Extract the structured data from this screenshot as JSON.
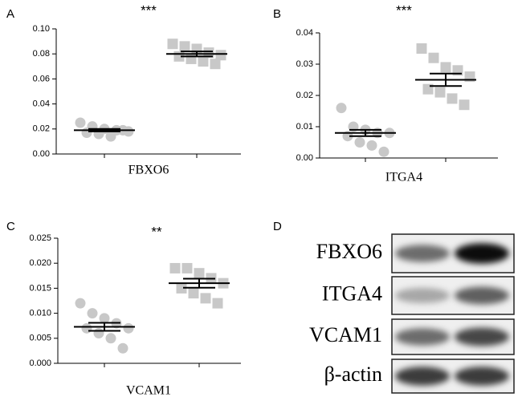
{
  "chart_data": [
    {
      "type": "scatter",
      "label": "A",
      "title": "***",
      "x_label": "FBXO6",
      "ylim": [
        0,
        0.1
      ],
      "yticks": [
        {
          "value": 0,
          "label": "0.00"
        },
        {
          "value": 0.02,
          "label": "0.02"
        },
        {
          "value": 0.04,
          "label": "0.04"
        },
        {
          "value": 0.06,
          "label": "0.06"
        },
        {
          "value": 0.08,
          "label": "0.08"
        },
        {
          "value": 0.1,
          "label": "0.10"
        }
      ],
      "series": [
        {
          "marker": "circle",
          "color": "#c8c8c8",
          "values": [
            0.025,
            0.022,
            0.02,
            0.019,
            0.018,
            0.017,
            0.016,
            0.014,
            0.019
          ],
          "mean": 0.019,
          "sem": 0.001
        },
        {
          "marker": "square",
          "color": "#c8c8c8",
          "values": [
            0.088,
            0.086,
            0.084,
            0.081,
            0.079,
            0.078,
            0.076,
            0.074,
            0.072
          ],
          "mean": 0.08,
          "sem": 0.002
        }
      ]
    },
    {
      "type": "scatter",
      "label": "B",
      "title": "***",
      "x_label": "ITGA4",
      "ylim": [
        0,
        0.04
      ],
      "yticks": [
        {
          "value": 0,
          "label": "0.00"
        },
        {
          "value": 0.01,
          "label": "0.01"
        },
        {
          "value": 0.02,
          "label": "0.02"
        },
        {
          "value": 0.03,
          "label": "0.03"
        },
        {
          "value": 0.04,
          "label": "0.04"
        }
      ],
      "series": [
        {
          "marker": "circle",
          "color": "#c8c8c8",
          "values": [
            0.016,
            0.01,
            0.009,
            0.008,
            0.008,
            0.007,
            0.005,
            0.004,
            0.002
          ],
          "mean": 0.008,
          "sem": 0.001
        },
        {
          "marker": "square",
          "color": "#c8c8c8",
          "values": [
            0.035,
            0.032,
            0.029,
            0.028,
            0.026,
            0.022,
            0.021,
            0.019,
            0.017
          ],
          "mean": 0.025,
          "sem": 0.002
        }
      ]
    },
    {
      "type": "scatter",
      "label": "C",
      "title": "**",
      "x_label": "VCAM1",
      "ylim": [
        0,
        0.025
      ],
      "yticks": [
        {
          "value": 0,
          "label": "0.000"
        },
        {
          "value": 0.005,
          "label": "0.005"
        },
        {
          "value": 0.01,
          "label": "0.010"
        },
        {
          "value": 0.015,
          "label": "0.015"
        },
        {
          "value": 0.02,
          "label": "0.020"
        },
        {
          "value": 0.025,
          "label": "0.025"
        }
      ],
      "series": [
        {
          "marker": "circle",
          "color": "#c8c8c8",
          "values": [
            0.012,
            0.01,
            0.009,
            0.008,
            0.007,
            0.007,
            0.006,
            0.005,
            0.003
          ],
          "mean": 0.0073,
          "sem": 0.0008
        },
        {
          "marker": "square",
          "color": "#c8c8c8",
          "values": [
            0.019,
            0.019,
            0.018,
            0.017,
            0.016,
            0.015,
            0.014,
            0.013,
            0.012
          ],
          "mean": 0.016,
          "sem": 0.0009
        }
      ]
    }
  ],
  "blot": {
    "label": "D",
    "rows": [
      "FBXO6",
      "ITGA4",
      "VCAM1",
      "β-actin"
    ]
  }
}
